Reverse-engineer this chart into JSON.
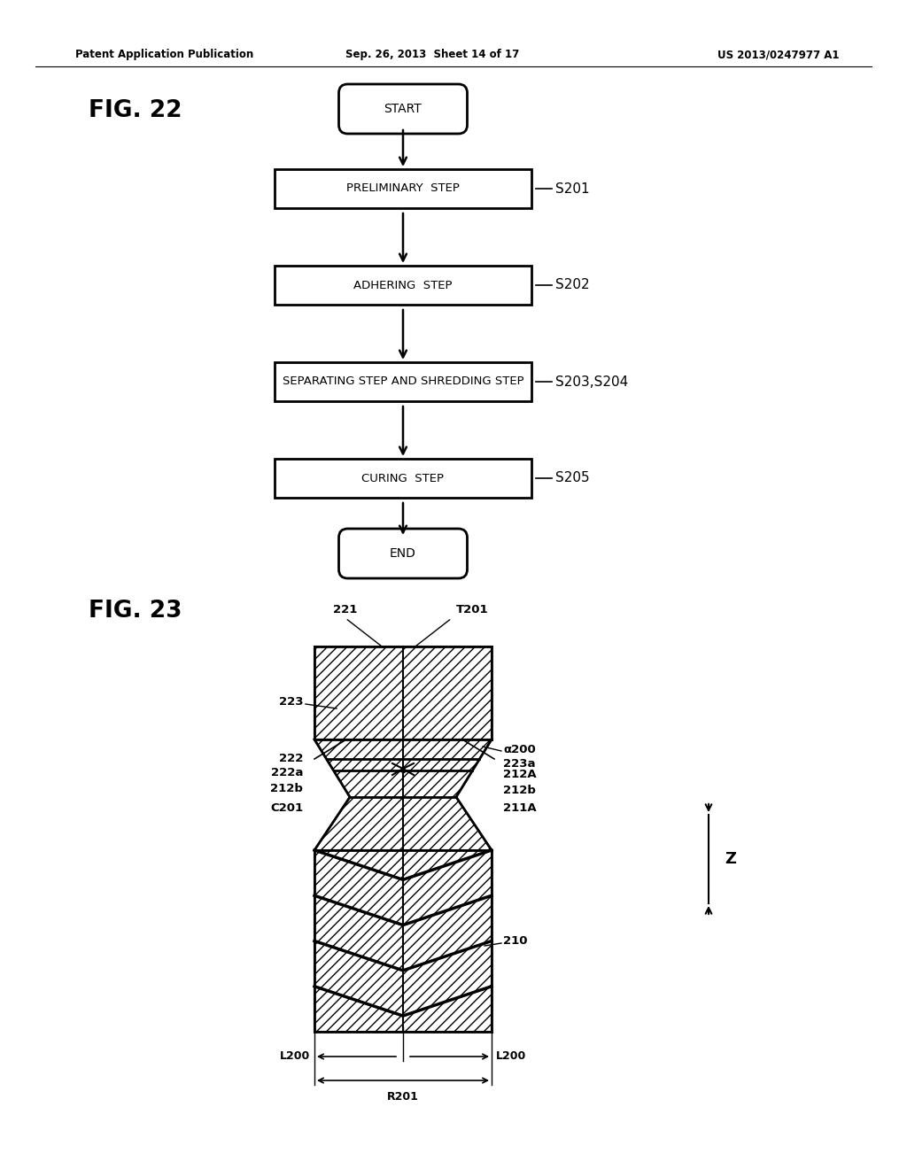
{
  "header_left": "Patent Application Publication",
  "header_mid": "Sep. 26, 2013  Sheet 14 of 17",
  "header_right": "US 2013/0247977 A1",
  "fig22_label": "FIG. 22",
  "fig23_label": "FIG. 23",
  "flowchart": {
    "start_text": "START",
    "end_text": "END",
    "steps": [
      {
        "text": "PRELIMINARY  STEP",
        "label": "S201"
      },
      {
        "text": "ADHERING  STEP",
        "label": "S202"
      },
      {
        "text": "SEPARATING STEP AND SHREDDING STEP",
        "label": "S203,S204"
      },
      {
        "text": "CURING  STEP",
        "label": "S205"
      }
    ]
  },
  "bg_color": "#ffffff",
  "fg_color": "#000000"
}
